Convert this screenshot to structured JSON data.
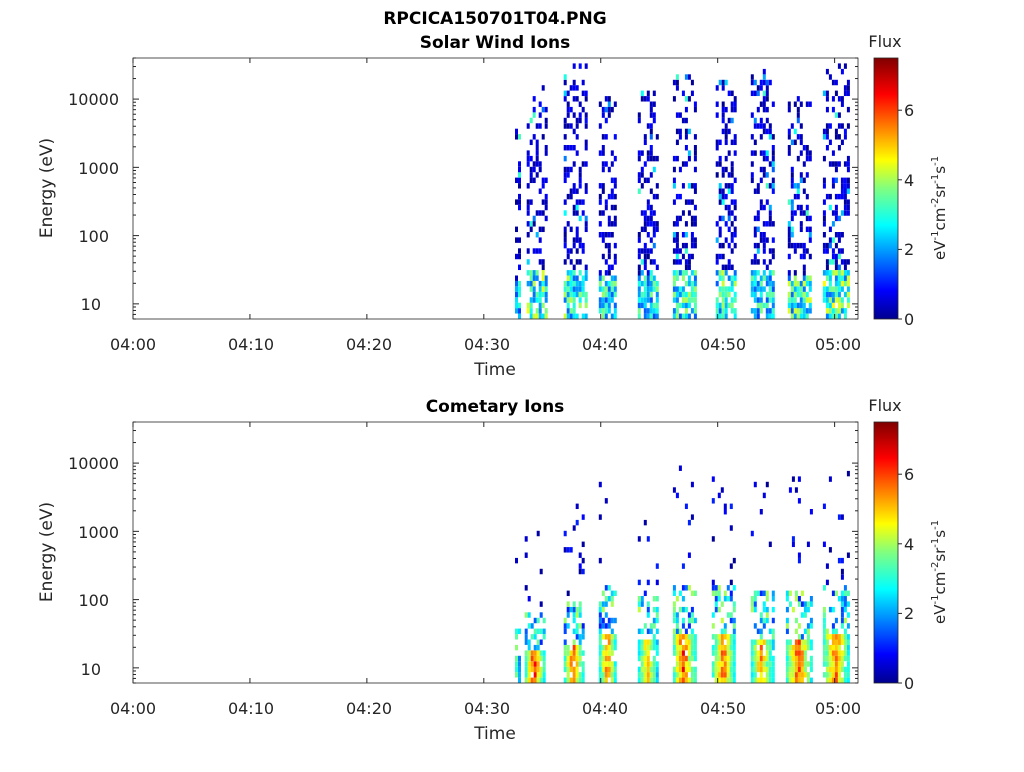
{
  "figure": {
    "title": "RPCICA150701T04.PNG"
  },
  "chart_data": [
    {
      "type": "heatmap",
      "title": "Solar Wind Ions",
      "xlabel": "Time",
      "ylabel": "Energy (eV)",
      "x_range": [
        "04:00",
        "05:02"
      ],
      "x_ticks": [
        "04:00",
        "04:10",
        "04:20",
        "04:30",
        "04:40",
        "04:50",
        "05:00"
      ],
      "y_scale": "log",
      "y_range": [
        6,
        40000
      ],
      "y_ticks": [
        "10",
        "100",
        "1000",
        "10000"
      ],
      "grid": false,
      "colorbar": {
        "title": "Flux",
        "label": "eV-1cm-2sr-1s-1",
        "range": [
          0,
          7.5
        ],
        "ticks": [
          "0",
          "2",
          "4",
          "6"
        ],
        "colormap": "jet"
      },
      "bursts": [
        {
          "start": "04:32:40",
          "end": "04:33:00",
          "max_energy": 4500,
          "peak_flux": 3.2
        },
        {
          "start": "04:33:40",
          "end": "04:35:20",
          "max_energy": 16000,
          "peak_flux": 4.6
        },
        {
          "start": "04:36:50",
          "end": "04:38:40",
          "max_energy": 35000,
          "peak_flux": 4.3
        },
        {
          "start": "04:39:50",
          "end": "04:41:20",
          "max_energy": 12000,
          "peak_flux": 4.0
        },
        {
          "start": "04:43:10",
          "end": "04:44:50",
          "max_energy": 13000,
          "peak_flux": 3.8
        },
        {
          "start": "04:46:10",
          "end": "04:48:00",
          "max_energy": 25000,
          "peak_flux": 4.1
        },
        {
          "start": "04:49:50",
          "end": "04:51:30",
          "max_energy": 20000,
          "peak_flux": 4.3
        },
        {
          "start": "04:52:50",
          "end": "04:54:40",
          "max_energy": 27000,
          "peak_flux": 3.7
        },
        {
          "start": "04:56:00",
          "end": "04:58:00",
          "max_energy": 12000,
          "peak_flux": 4.4
        },
        {
          "start": "04:59:00",
          "end": "05:01:10",
          "max_energy": 33000,
          "peak_flux": 4.6
        }
      ]
    },
    {
      "type": "heatmap",
      "title": "Cometary Ions",
      "xlabel": "Time",
      "ylabel": "Energy (eV)",
      "x_range": [
        "04:00",
        "05:02"
      ],
      "x_ticks": [
        "04:00",
        "04:10",
        "04:20",
        "04:30",
        "04:40",
        "04:50",
        "05:00"
      ],
      "y_scale": "log",
      "y_range": [
        6,
        40000
      ],
      "y_ticks": [
        "10",
        "100",
        "1000",
        "10000"
      ],
      "grid": false,
      "colorbar": {
        "title": "Flux",
        "label": "eV-1cm-2sr-1s-1",
        "range": [
          0,
          7.5
        ],
        "ticks": [
          "0",
          "2",
          "4",
          "6"
        ],
        "colormap": "jet"
      },
      "bursts": [
        {
          "start": "04:32:40",
          "end": "04:33:00",
          "max_energy": 550,
          "peak_flux": 4.5
        },
        {
          "start": "04:33:30",
          "end": "04:35:10",
          "max_energy": 1300,
          "peak_flux": 6.8
        },
        {
          "start": "04:36:50",
          "end": "04:38:30",
          "max_energy": 3000,
          "peak_flux": 6.6
        },
        {
          "start": "04:39:50",
          "end": "04:41:20",
          "max_energy": 10000,
          "peak_flux": 6.1
        },
        {
          "start": "04:43:10",
          "end": "04:44:50",
          "max_energy": 3500,
          "peak_flux": 5.7
        },
        {
          "start": "04:46:10",
          "end": "04:48:00",
          "max_energy": 9000,
          "peak_flux": 6.7
        },
        {
          "start": "04:49:30",
          "end": "04:51:30",
          "max_energy": 10000,
          "peak_flux": 6.3
        },
        {
          "start": "04:52:50",
          "end": "04:54:40",
          "max_energy": 7000,
          "peak_flux": 6.0
        },
        {
          "start": "04:55:50",
          "end": "04:58:00",
          "max_energy": 6000,
          "peak_flux": 6.6
        },
        {
          "start": "04:59:00",
          "end": "05:01:10",
          "max_energy": 9000,
          "peak_flux": 6.4
        }
      ]
    }
  ]
}
